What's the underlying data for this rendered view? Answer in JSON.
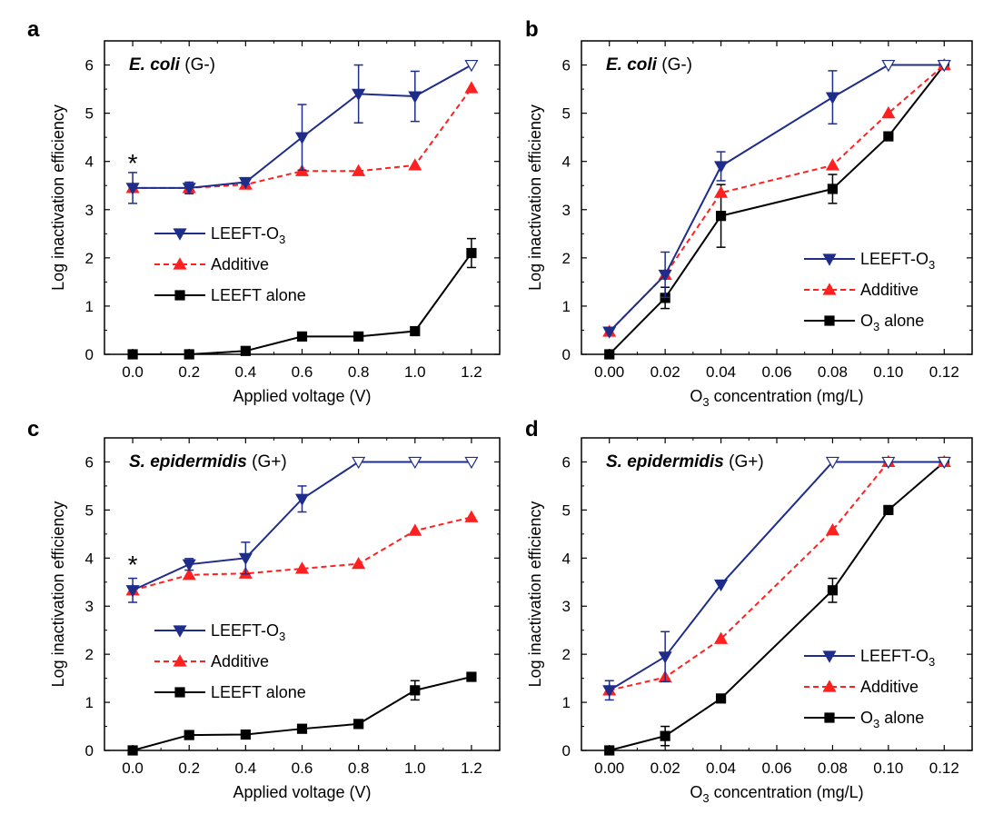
{
  "colors": {
    "navy": "#1f2d8a",
    "red": "#ff2020",
    "black": "#000000"
  },
  "series_names": {
    "leeft_o3": "LEEFT-O",
    "leeft_o3_sub": "3",
    "additive": "Additive",
    "leeft_alone": "LEEFT alone",
    "o3_alone_prefix": "O",
    "o3_alone_sub": "3",
    "o3_alone_suffix": " alone"
  },
  "chart_data": [
    {
      "panel": "a",
      "type": "line",
      "organism_italic": "E. coli",
      "organism_gram": "(G-)",
      "xlabel": "Applied voltage (V)",
      "ylabel": "Log inactivation efficiency",
      "x": [
        0.0,
        0.2,
        0.4,
        0.6,
        0.8,
        1.0,
        1.2
      ],
      "xticks": [
        "0.0",
        "0.2",
        "0.4",
        "0.6",
        "0.8",
        "1.0",
        "1.2"
      ],
      "yticks": [
        "0",
        "1",
        "2",
        "3",
        "4",
        "5",
        "6"
      ],
      "xlim": [
        -0.1,
        1.3
      ],
      "ylim": [
        0,
        6.5
      ],
      "annotation": "*",
      "annotation_x": 0.0,
      "annotation_y": 4.05,
      "legend_position": "center-left",
      "series": [
        {
          "key": "leeft_o3",
          "style": "solid",
          "marker": "triangle-down",
          "color": "navy",
          "values": [
            3.45,
            3.45,
            3.57,
            4.5,
            5.4,
            5.35,
            6.0
          ],
          "errors": [
            0.32,
            0.12,
            0.04,
            0.68,
            0.6,
            0.52,
            0
          ],
          "open": [
            false,
            false,
            false,
            false,
            false,
            false,
            true
          ]
        },
        {
          "key": "additive",
          "style": "dashed",
          "marker": "triangle-up",
          "color": "red",
          "values": [
            3.45,
            3.45,
            3.52,
            3.8,
            3.8,
            3.92,
            5.52
          ],
          "errors": [
            0,
            0,
            0,
            0,
            0,
            0,
            0
          ]
        },
        {
          "key": "leeft_alone",
          "style": "solid",
          "marker": "square",
          "color": "black",
          "values": [
            0.0,
            0.0,
            0.07,
            0.37,
            0.37,
            0.48,
            2.1
          ],
          "errors": [
            0,
            0,
            0,
            0,
            0,
            0,
            0.3
          ]
        }
      ]
    },
    {
      "panel": "b",
      "type": "line",
      "organism_italic": "E. coli",
      "organism_gram": "(G-)",
      "xlabel_prefix": "O",
      "xlabel_sub": "3",
      "xlabel_suffix": " concentration (mg/L)",
      "ylabel": "Log inactivation efficiency",
      "x": [
        0.0,
        0.02,
        0.04,
        0.08,
        0.1,
        0.12
      ],
      "xticks": [
        "0.00",
        "0.02",
        "0.04",
        "0.06",
        "0.08",
        "0.10",
        "0.12"
      ],
      "xtick_values": [
        0.0,
        0.02,
        0.04,
        0.06,
        0.08,
        0.1,
        0.12
      ],
      "yticks": [
        "0",
        "1",
        "2",
        "3",
        "4",
        "5",
        "6"
      ],
      "xlim": [
        -0.01,
        0.13
      ],
      "ylim": [
        0,
        6.5
      ],
      "legend_position": "bottom-right",
      "series": [
        {
          "key": "leeft_o3",
          "style": "solid",
          "marker": "triangle-down",
          "color": "navy",
          "values": [
            0.47,
            1.65,
            3.9,
            5.33,
            6.0,
            6.0
          ],
          "errors": [
            0,
            0.47,
            0.3,
            0.55,
            0,
            0
          ],
          "open": [
            false,
            false,
            false,
            false,
            true,
            true
          ]
        },
        {
          "key": "additive",
          "style": "dashed",
          "marker": "triangle-up",
          "color": "red",
          "values": [
            0.47,
            1.65,
            3.35,
            3.92,
            5.0,
            6.0
          ],
          "errors": [
            0,
            0,
            0,
            0,
            0,
            0
          ]
        },
        {
          "key": "o3_alone",
          "style": "solid",
          "marker": "square",
          "color": "black",
          "values": [
            0.0,
            1.17,
            2.87,
            3.43,
            4.52,
            6.0
          ],
          "errors": [
            0,
            0.22,
            0.65,
            0.3,
            0,
            0
          ]
        }
      ]
    },
    {
      "panel": "c",
      "type": "line",
      "organism_italic": "S. epidermidis",
      "organism_gram": "(G+)",
      "xlabel": "Applied voltage (V)",
      "ylabel": "Log inactivation efficiency",
      "x": [
        0.0,
        0.2,
        0.4,
        0.6,
        0.8,
        1.0,
        1.2
      ],
      "xticks": [
        "0.0",
        "0.2",
        "0.4",
        "0.6",
        "0.8",
        "1.0",
        "1.2"
      ],
      "yticks": [
        "0",
        "1",
        "2",
        "3",
        "4",
        "5",
        "6"
      ],
      "xlim": [
        -0.1,
        1.3
      ],
      "ylim": [
        0,
        6.5
      ],
      "annotation": "*",
      "annotation_x": 0.0,
      "annotation_y": 3.95,
      "legend_position": "center-left",
      "series": [
        {
          "key": "leeft_o3",
          "style": "solid",
          "marker": "triangle-down",
          "color": "navy",
          "values": [
            3.33,
            3.87,
            4.0,
            5.23,
            6.0,
            6.0,
            6.0
          ],
          "errors": [
            0.25,
            0.12,
            0.33,
            0.27,
            0,
            0,
            0
          ],
          "open": [
            false,
            false,
            false,
            false,
            true,
            true,
            true
          ]
        },
        {
          "key": "additive",
          "style": "dashed",
          "marker": "triangle-up",
          "color": "red",
          "values": [
            3.33,
            3.65,
            3.68,
            3.78,
            3.88,
            4.57,
            4.85
          ],
          "errors": [
            0,
            0,
            0,
            0,
            0,
            0,
            0
          ]
        },
        {
          "key": "leeft_alone",
          "style": "solid",
          "marker": "square",
          "color": "black",
          "values": [
            0.0,
            0.32,
            0.33,
            0.45,
            0.55,
            1.25,
            1.53
          ],
          "errors": [
            0,
            0,
            0,
            0,
            0,
            0.2,
            0
          ]
        }
      ]
    },
    {
      "panel": "d",
      "type": "line",
      "organism_italic": "S. epidermidis",
      "organism_gram": "(G+)",
      "xlabel_prefix": "O",
      "xlabel_sub": "3",
      "xlabel_suffix": " concentration (mg/L)",
      "ylabel": "Log inactivation efficiency",
      "x": [
        0.0,
        0.02,
        0.04,
        0.08,
        0.1,
        0.12
      ],
      "xticks": [
        "0.00",
        "0.02",
        "0.04",
        "0.06",
        "0.08",
        "0.10",
        "0.12"
      ],
      "xtick_values": [
        0.0,
        0.02,
        0.04,
        0.06,
        0.08,
        0.1,
        0.12
      ],
      "yticks": [
        "0",
        "1",
        "2",
        "3",
        "4",
        "5",
        "6"
      ],
      "xlim": [
        -0.01,
        0.13
      ],
      "ylim": [
        0,
        6.5
      ],
      "legend_position": "bottom-right",
      "series": [
        {
          "key": "leeft_o3",
          "style": "solid",
          "marker": "triangle-down",
          "color": "navy",
          "values": [
            1.25,
            1.95,
            3.45,
            6.0,
            6.0,
            6.0
          ],
          "errors": [
            0.2,
            0.52,
            0,
            0,
            0,
            0
          ],
          "open": [
            false,
            false,
            false,
            true,
            true,
            true
          ]
        },
        {
          "key": "additive",
          "style": "dashed",
          "marker": "triangle-up",
          "color": "red",
          "values": [
            1.25,
            1.52,
            2.32,
            4.58,
            6.0,
            6.0
          ],
          "errors": [
            0,
            0,
            0,
            0,
            0,
            0
          ]
        },
        {
          "key": "o3_alone",
          "style": "solid",
          "marker": "square",
          "color": "black",
          "values": [
            0.0,
            0.3,
            1.08,
            3.33,
            5.0,
            6.0
          ],
          "errors": [
            0,
            0.2,
            0,
            0.25,
            0,
            0
          ]
        }
      ]
    }
  ]
}
